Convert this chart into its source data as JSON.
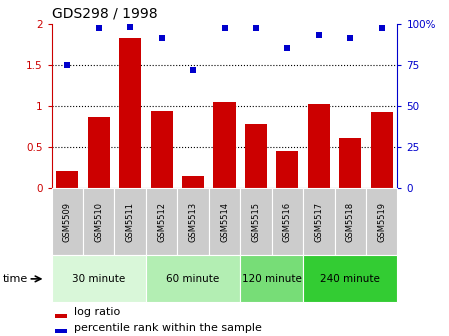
{
  "title": "GDS298 / 1998",
  "samples": [
    "GSM5509",
    "GSM5510",
    "GSM5511",
    "GSM5512",
    "GSM5513",
    "GSM5514",
    "GSM5515",
    "GSM5516",
    "GSM5517",
    "GSM5518",
    "GSM5519"
  ],
  "log_ratio": [
    0.21,
    0.86,
    1.83,
    0.94,
    0.15,
    1.05,
    0.78,
    0.45,
    1.02,
    0.61,
    0.93
  ],
  "percentile": [
    75,
    97,
    98,
    91,
    72,
    97,
    97,
    85,
    93,
    91,
    97
  ],
  "bar_color": "#cc0000",
  "dot_color": "#0000cc",
  "ylim_left": [
    0,
    2
  ],
  "ylim_right": [
    0,
    100
  ],
  "yticks_left": [
    0,
    0.5,
    1.0,
    1.5,
    2.0
  ],
  "ytick_labels_left": [
    "0",
    "0.5",
    "1",
    "1.5",
    "2"
  ],
  "yticks_right": [
    0,
    25,
    50,
    75,
    100
  ],
  "ytick_labels_right": [
    "0",
    "25",
    "50",
    "75",
    "100%"
  ],
  "groups": [
    {
      "label": "30 minute",
      "indices": [
        0,
        1,
        2
      ],
      "color": "#d9f7d9"
    },
    {
      "label": "60 minute",
      "indices": [
        3,
        4,
        5
      ],
      "color": "#b3eeb3"
    },
    {
      "label": "120 minute",
      "indices": [
        6,
        7
      ],
      "color": "#77dd77"
    },
    {
      "label": "240 minute",
      "indices": [
        8,
        9,
        10
      ],
      "color": "#33cc33"
    }
  ],
  "legend_bar_label": "log ratio",
  "legend_dot_label": "percentile rank within the sample",
  "background_xtick": "#cccccc",
  "fig_width": 4.49,
  "fig_height": 3.36,
  "dpi": 100
}
